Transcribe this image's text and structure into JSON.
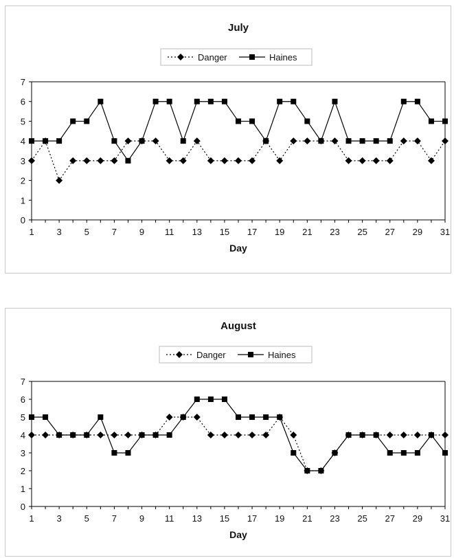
{
  "chart_data": [
    {
      "type": "line",
      "title": "July",
      "xlabel": "Day",
      "ylabel": "",
      "ylim": [
        0,
        7
      ],
      "xlim": [
        1,
        31
      ],
      "x": [
        1,
        2,
        3,
        4,
        5,
        6,
        7,
        8,
        9,
        10,
        11,
        12,
        13,
        14,
        15,
        16,
        17,
        18,
        19,
        20,
        21,
        22,
        23,
        24,
        25,
        26,
        27,
        28,
        29,
        30,
        31
      ],
      "xticks": [
        "1",
        "3",
        "5",
        "7",
        "9",
        "11",
        "13",
        "15",
        "17",
        "19",
        "21",
        "23",
        "25",
        "27",
        "29",
        "31"
      ],
      "yticks": [
        "0",
        "1",
        "2",
        "3",
        "4",
        "5",
        "6",
        "7"
      ],
      "legend_position": "top-center",
      "grid": false,
      "series": [
        {
          "name": "Danger",
          "style": "dotted",
          "marker": "diamond",
          "values": [
            3,
            4,
            2,
            3,
            3,
            3,
            3,
            4,
            4,
            4,
            3,
            3,
            4,
            3,
            3,
            3,
            3,
            4,
            3,
            4,
            4,
            4,
            4,
            3,
            3,
            3,
            3,
            4,
            4,
            3,
            4
          ]
        },
        {
          "name": "Haines",
          "style": "solid",
          "marker": "square",
          "values": [
            4,
            4,
            4,
            5,
            5,
            6,
            4,
            3,
            4,
            6,
            6,
            4,
            6,
            6,
            6,
            5,
            5,
            4,
            6,
            6,
            5,
            4,
            6,
            4,
            4,
            4,
            4,
            6,
            6,
            5,
            5
          ]
        }
      ]
    },
    {
      "type": "line",
      "title": "August",
      "xlabel": "Day",
      "ylabel": "",
      "ylim": [
        0,
        7
      ],
      "xlim": [
        1,
        31
      ],
      "x": [
        1,
        2,
        3,
        4,
        5,
        6,
        7,
        8,
        9,
        10,
        11,
        12,
        13,
        14,
        15,
        16,
        17,
        18,
        19,
        20,
        21,
        22,
        23,
        24,
        25,
        26,
        27,
        28,
        29,
        30,
        31
      ],
      "xticks": [
        "1",
        "3",
        "5",
        "7",
        "9",
        "11",
        "13",
        "15",
        "17",
        "19",
        "21",
        "23",
        "25",
        "27",
        "29",
        "31"
      ],
      "yticks": [
        "0",
        "1",
        "2",
        "3",
        "4",
        "5",
        "6",
        "7"
      ],
      "legend_position": "top-center",
      "grid": false,
      "series": [
        {
          "name": "Danger",
          "style": "dotted",
          "marker": "diamond",
          "values": [
            4,
            4,
            4,
            4,
            4,
            4,
            4,
            4,
            4,
            4,
            5,
            5,
            5,
            4,
            4,
            4,
            4,
            4,
            5,
            4,
            2,
            2,
            3,
            4,
            4,
            4,
            4,
            4,
            4,
            4,
            4
          ]
        },
        {
          "name": "Haines",
          "style": "solid",
          "marker": "square",
          "values": [
            5,
            5,
            4,
            4,
            4,
            5,
            3,
            3,
            4,
            4,
            4,
            5,
            6,
            6,
            6,
            5,
            5,
            5,
            5,
            3,
            2,
            2,
            3,
            4,
            4,
            4,
            3,
            3,
            3,
            4,
            3
          ]
        }
      ]
    }
  ],
  "colors": {
    "line": "#000000",
    "axis": "#000000",
    "frame": "#c8c8c8"
  }
}
